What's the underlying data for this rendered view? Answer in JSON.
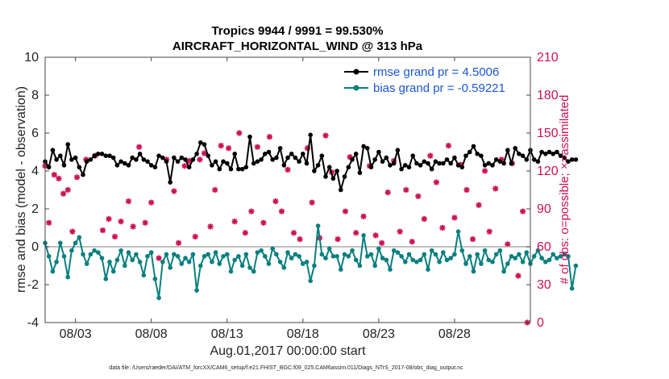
{
  "chart_data": {
    "type": "line",
    "title_line1": "Tropics 9944 / 9991 = 99.530%",
    "title_line2": "AIRCRAFT_HORIZONTAL_WIND @ 313 hPa",
    "ylabel": "rmse and bias (model - observation)",
    "ylabel_right": "# of obs: o=possible; ×=assimilated",
    "xlabel": "Aug.01,2017 00:00:00 start",
    "footer": "data file: /Users/raeder/DAI/ATM_forcXX/CAM6_setup/f.e21.FHIST_BGC.f09_025.CAM6assim.011/Diags_NTrS_2017-08/obs_diag_output.nc",
    "ylim": [
      -4,
      10
    ],
    "yticks": [
      "-4",
      "-2",
      "0",
      "2",
      "4",
      "6",
      "8",
      "10"
    ],
    "ylim_right": [
      0,
      210
    ],
    "yticks_right": [
      "0",
      "30",
      "60",
      "90",
      "120",
      "150",
      "180",
      "210"
    ],
    "xlim_days": [
      0,
      32
    ],
    "xticks": [
      {
        "day": 2,
        "label": "08/03"
      },
      {
        "day": 7,
        "label": "08/08"
      },
      {
        "day": 12,
        "label": "08/13"
      },
      {
        "day": 17,
        "label": "08/18"
      },
      {
        "day": 22,
        "label": "08/23"
      },
      {
        "day": 27,
        "label": "08/28"
      }
    ],
    "step_days": 0.25,
    "legend": [
      "rmse grand pr = 4.5006",
      "bias grand pr = -0.59221"
    ],
    "colors": {
      "rmse": "#000000",
      "bias": "#0a7f7f",
      "obs": "#cc1155",
      "zero": "#aaaaaa"
    },
    "series": [
      {
        "name": "rmse",
        "values": [
          4.5,
          4.2,
          5.1,
          4.6,
          4.8,
          4.3,
          5.4,
          4.6,
          4.7,
          4.2,
          3.8,
          4.5,
          4.6,
          4.8,
          4.9,
          4.9,
          4.8,
          4.8,
          4.7,
          4.3,
          4.5,
          4.4,
          4.3,
          4.7,
          4.6,
          4.9,
          4.6,
          4.5,
          4.3,
          4.2,
          4.8,
          4.7,
          4.5,
          3.4,
          4.7,
          4.5,
          4.7,
          4.6,
          4.2,
          4.6,
          4.9,
          5.5,
          5.4,
          4.8,
          4.3,
          4.5,
          4.1,
          4.5,
          4.4,
          4.1,
          4.9,
          4.1,
          4.1,
          4.2,
          5.8,
          4.4,
          4.5,
          4.6,
          4.9,
          5.0,
          4.6,
          4.7,
          5.2,
          4.3,
          4.7,
          4.9,
          4.7,
          4.5,
          4.9,
          4.4,
          5.9,
          4.0,
          4.3,
          4.8,
          3.7,
          4.2,
          3.6,
          4.0,
          3.0,
          3.7,
          4.2,
          4.6,
          4.9,
          3.9,
          5.3,
          5.2,
          4.2,
          4.6,
          5.0,
          4.5,
          4.7,
          4.3,
          4.4,
          5.1,
          4.1,
          4.3,
          4.2,
          4.8,
          4.4,
          4.3,
          4.5,
          4.4,
          4.1,
          4.5,
          4.4,
          4.4,
          4.6,
          4.4,
          4.7,
          4.3,
          4.2,
          4.8,
          5.0,
          5.3,
          4.9,
          4.8,
          4.3,
          4.4,
          4.3,
          4.6,
          4.5,
          4.4,
          5.1,
          4.4,
          5.2,
          4.9,
          4.8,
          4.6,
          5.1,
          4.6,
          4.5,
          5.0,
          4.9,
          5.0,
          4.9,
          5.0,
          4.8,
          4.7,
          4.5,
          4.6,
          4.6
        ]
      },
      {
        "name": "bias",
        "values": [
          0.2,
          -0.5,
          -1.3,
          -0.8,
          0.2,
          -0.5,
          -1.6,
          -0.2,
          0.2,
          0.5,
          -0.4,
          -0.9,
          -0.4,
          -0.2,
          -0.3,
          -0.6,
          -1.7,
          -0.8,
          -1.3,
          -0.7,
          -0.2,
          -1.0,
          -0.3,
          -0.7,
          -0.4,
          -0.8,
          -1.5,
          -0.5,
          -0.3,
          -1.7,
          -2.7,
          -0.8,
          -0.4,
          -1.1,
          -0.4,
          -0.5,
          -0.9,
          -0.6,
          -0.8,
          -0.4,
          -2.3,
          -1.0,
          -0.5,
          -0.4,
          -0.8,
          -0.3,
          -0.9,
          -0.5,
          -0.4,
          -1.3,
          -0.7,
          -0.5,
          -1.0,
          -0.4,
          -1.1,
          -1.3,
          -0.3,
          -0.2,
          -0.5,
          -0.9,
          -0.1,
          -0.4,
          -0.8,
          -1.1,
          -0.3,
          -0.6,
          -0.4,
          -0.5,
          -0.9,
          -0.8,
          -1.8,
          -1.0,
          1.1,
          -0.4,
          -0.6,
          -0.1,
          -0.5,
          -0.5,
          -1.2,
          -0.4,
          -0.5,
          -0.2,
          -0.7,
          -1.0,
          0.6,
          -0.5,
          -0.4,
          -1.0,
          -0.1,
          -0.6,
          -0.7,
          -1.2,
          -0.2,
          -0.3,
          -0.5,
          -0.8,
          -0.4,
          -0.7,
          -0.8,
          -0.7,
          -0.4,
          -1.2,
          -0.2,
          -0.4,
          -0.8,
          -0.3,
          -0.7,
          -0.6,
          -0.4,
          0.8,
          -0.2,
          -0.9,
          -0.5,
          -1.3,
          -0.4,
          -0.9,
          -0.2,
          -0.7,
          -0.8,
          -0.4,
          -0.2,
          -1.3,
          -0.9,
          -0.5,
          -0.6,
          -0.4,
          -0.8,
          -0.3,
          -0.9,
          -0.5,
          -0.2,
          -0.6,
          -0.8,
          -0.7,
          -0.4,
          -0.6,
          -0.5,
          -0.4,
          -0.5,
          -2.2,
          -1.0
        ]
      }
    ],
    "obs_points_right_axis": [
      {
        "day": 0.0,
        "n": 124
      },
      {
        "day": 0.25,
        "n": 79
      },
      {
        "day": 0.6,
        "n": 117
      },
      {
        "day": 0.9,
        "n": 114
      },
      {
        "day": 1.2,
        "n": 102
      },
      {
        "day": 1.5,
        "n": 105
      },
      {
        "day": 1.8,
        "n": 72
      },
      {
        "day": 2.1,
        "n": 115
      },
      {
        "day": 2.7,
        "n": 129
      },
      {
        "day": 3.3,
        "n": 132
      },
      {
        "day": 3.8,
        "n": 73
      },
      {
        "day": 4.2,
        "n": 82
      },
      {
        "day": 4.6,
        "n": 68
      },
      {
        "day": 5.0,
        "n": 80
      },
      {
        "day": 5.5,
        "n": 96
      },
      {
        "day": 5.8,
        "n": 76
      },
      {
        "day": 6.2,
        "n": 139
      },
      {
        "day": 6.6,
        "n": 79
      },
      {
        "day": 7.0,
        "n": 95
      },
      {
        "day": 7.5,
        "n": 51
      },
      {
        "day": 8.0,
        "n": 129
      },
      {
        "day": 8.5,
        "n": 104
      },
      {
        "day": 8.8,
        "n": 63
      },
      {
        "day": 9.2,
        "n": 124
      },
      {
        "day": 9.5,
        "n": 128
      },
      {
        "day": 9.9,
        "n": 68
      },
      {
        "day": 10.2,
        "n": 129
      },
      {
        "day": 10.5,
        "n": 134
      },
      {
        "day": 10.9,
        "n": 76
      },
      {
        "day": 11.2,
        "n": 105
      },
      {
        "day": 11.6,
        "n": 140
      },
      {
        "day": 12.1,
        "n": 138
      },
      {
        "day": 12.5,
        "n": 80
      },
      {
        "day": 12.8,
        "n": 150
      },
      {
        "day": 13.2,
        "n": 71
      },
      {
        "day": 13.6,
        "n": 88
      },
      {
        "day": 14.0,
        "n": 139
      },
      {
        "day": 14.4,
        "n": 79
      },
      {
        "day": 14.8,
        "n": 147
      },
      {
        "day": 15.2,
        "n": 96
      },
      {
        "day": 15.6,
        "n": 88
      },
      {
        "day": 16.0,
        "n": 121
      },
      {
        "day": 16.4,
        "n": 71
      },
      {
        "day": 16.8,
        "n": 66
      },
      {
        "day": 17.3,
        "n": 138
      },
      {
        "day": 17.6,
        "n": 95
      },
      {
        "day": 18.1,
        "n": 67
      },
      {
        "day": 18.5,
        "n": 148
      },
      {
        "day": 18.9,
        "n": 119
      },
      {
        "day": 19.3,
        "n": 66
      },
      {
        "day": 19.8,
        "n": 88
      },
      {
        "day": 20.1,
        "n": 131
      },
      {
        "day": 20.5,
        "n": 71
      },
      {
        "day": 21.0,
        "n": 84
      },
      {
        "day": 21.4,
        "n": 124
      },
      {
        "day": 21.8,
        "n": 69
      },
      {
        "day": 22.2,
        "n": 63
      },
      {
        "day": 22.6,
        "n": 103
      },
      {
        "day": 23.0,
        "n": 128
      },
      {
        "day": 23.4,
        "n": 72
      },
      {
        "day": 23.8,
        "n": 105
      },
      {
        "day": 24.2,
        "n": 64
      },
      {
        "day": 24.6,
        "n": 100
      },
      {
        "day": 25.0,
        "n": 82
      },
      {
        "day": 25.4,
        "n": 132
      },
      {
        "day": 25.8,
        "n": 111
      },
      {
        "day": 26.2,
        "n": 75
      },
      {
        "day": 26.6,
        "n": 140
      },
      {
        "day": 27.0,
        "n": 83
      },
      {
        "day": 27.4,
        "n": 125
      },
      {
        "day": 27.8,
        "n": 105
      },
      {
        "day": 28.2,
        "n": 66
      },
      {
        "day": 28.6,
        "n": 93
      },
      {
        "day": 29.0,
        "n": 120
      },
      {
        "day": 29.3,
        "n": 72
      },
      {
        "day": 29.7,
        "n": 106
      },
      {
        "day": 30.1,
        "n": 129
      },
      {
        "day": 30.5,
        "n": 62
      },
      {
        "day": 30.8,
        "n": 126
      },
      {
        "day": 31.2,
        "n": 37
      },
      {
        "day": 31.5,
        "n": 88
      },
      {
        "day": 31.8,
        "n": 0
      }
    ]
  }
}
